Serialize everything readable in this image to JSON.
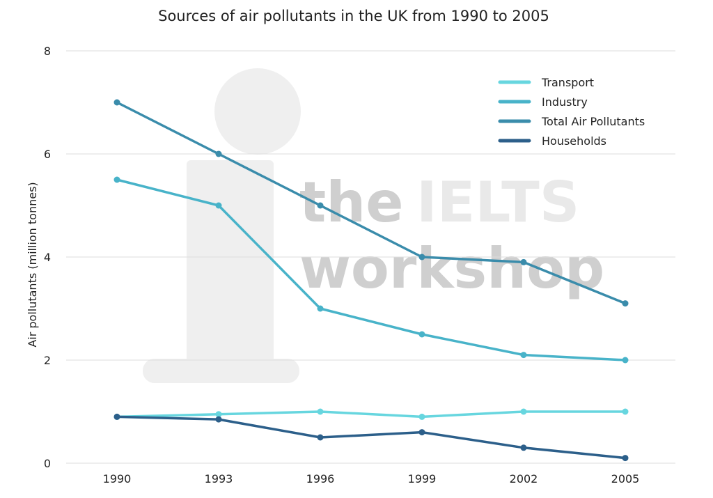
{
  "watermark": {
    "line1a": "the",
    "line1b": "IELTS",
    "line2": "workshop"
  },
  "chart_data": {
    "type": "line",
    "title": "Sources of air pollutants in the UK from 1990 to 2005",
    "xlabel": "",
    "ylabel": "Air pollutants (million tonnes)",
    "x": [
      "1990",
      "1993",
      "1996",
      "1999",
      "2002",
      "2005"
    ],
    "ylim": [
      0,
      8
    ],
    "yticks": [
      "0",
      "2",
      "4",
      "6",
      "8"
    ],
    "grid": true,
    "legend_position": "top-right",
    "series": [
      {
        "name": "Transport",
        "color": "#67d6df",
        "values": [
          0.9,
          0.95,
          1.0,
          0.9,
          1.0,
          1.0
        ]
      },
      {
        "name": "Industry",
        "color": "#48b3c9",
        "values": [
          5.5,
          5.0,
          3.0,
          2.5,
          2.1,
          2.0
        ]
      },
      {
        "name": "Total Air Pollutants",
        "color": "#3a8cab",
        "values": [
          7.0,
          6.0,
          5.0,
          4.0,
          3.9,
          3.1
        ]
      },
      {
        "name": "Households",
        "color": "#2c5f8a",
        "values": [
          0.9,
          0.85,
          0.5,
          0.6,
          0.3,
          0.1
        ]
      }
    ]
  }
}
